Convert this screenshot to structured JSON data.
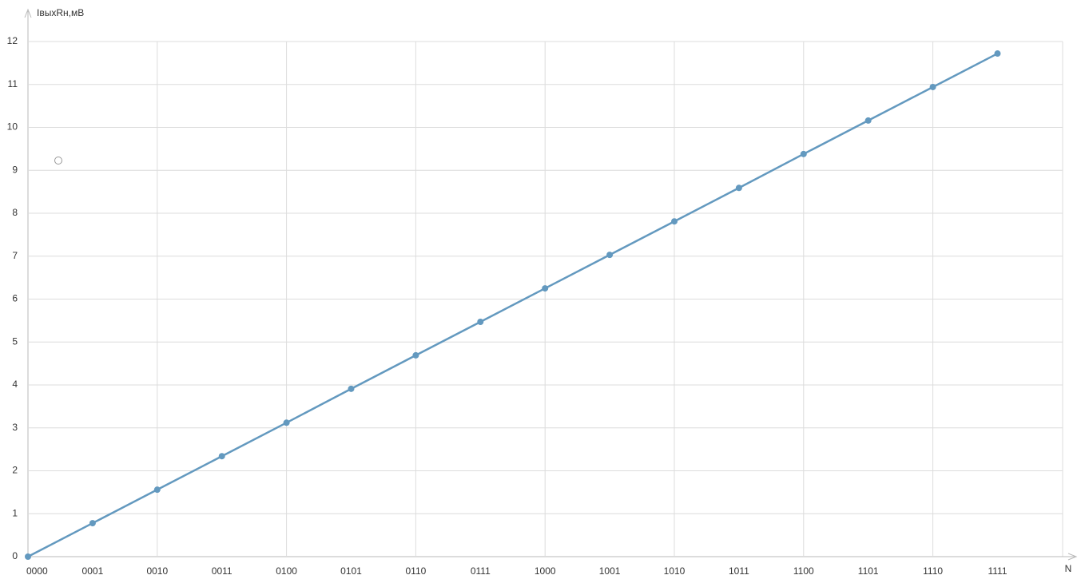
{
  "chart_data": {
    "type": "line",
    "y_label": "IвыхRн,мВ",
    "x_label": "N",
    "categories": [
      "0000",
      "0001",
      "0010",
      "0011",
      "0100",
      "0101",
      "0110",
      "0111",
      "1000",
      "1001",
      "1010",
      "1011",
      "1100",
      "1101",
      "1110",
      "1111"
    ],
    "series": [
      {
        "name": "IвыхRн",
        "color": "#6399bf",
        "values": [
          0,
          0.78,
          1.56,
          2.34,
          3.12,
          3.91,
          4.69,
          5.47,
          6.25,
          7.03,
          7.81,
          8.59,
          9.38,
          10.16,
          10.94,
          11.72
        ]
      }
    ],
    "ylim": [
      0,
      12
    ],
    "yticks": [
      0,
      1,
      2,
      3,
      4,
      5,
      6,
      7,
      8,
      9,
      10,
      11,
      12
    ],
    "grid": true
  }
}
